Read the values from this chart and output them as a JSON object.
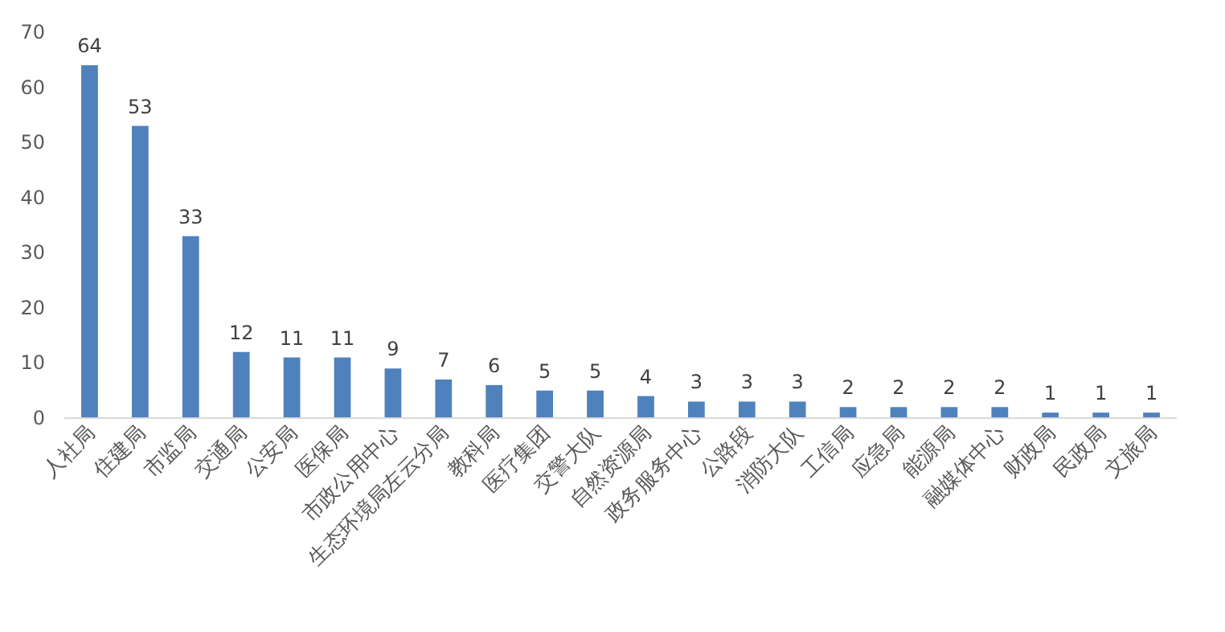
{
  "chart_data": {
    "type": "bar",
    "categories": [
      "人社局",
      "住建局",
      "市监局",
      "交通局",
      "公安局",
      "医保局",
      "市政公用中心",
      "生态环境局左云分局",
      "教科局",
      "医疗集团",
      "交警大队",
      "自然资源局",
      "政务服务中心",
      "公路段",
      "消防大队",
      "工信局",
      "应急局",
      "能源局",
      "融媒体中心",
      "财政局",
      "民政局",
      "文旅局"
    ],
    "values": [
      64,
      53,
      33,
      12,
      11,
      11,
      9,
      7,
      6,
      5,
      5,
      4,
      3,
      3,
      3,
      2,
      2,
      2,
      2,
      1,
      1,
      1
    ],
    "color": "#4f81bd",
    "ylim": [
      0,
      70
    ],
    "yticks": [
      0,
      10,
      20,
      30,
      40,
      50,
      60,
      70
    ],
    "data_labels": true,
    "grid": false
  }
}
